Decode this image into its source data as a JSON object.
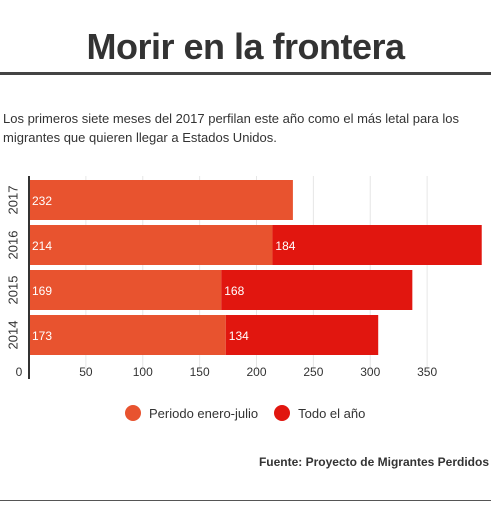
{
  "header": {
    "title": "Morir en la frontera",
    "subtitle": "Los primeros siete meses del 2017 perfilan este año como el más letal para los migrantes que quieren llegar a Estados Unidos."
  },
  "legend": {
    "items": [
      {
        "label": "Periodo enero-julio",
        "color": "#E8532F"
      },
      {
        "label": "Todo el año",
        "color": "#E1160F"
      }
    ]
  },
  "source": "Fuente: Proyecto de Migrantes Perdidos",
  "chart_data": {
    "type": "bar",
    "orientation": "horizontal",
    "stacked": true,
    "categories": [
      "2017",
      "2016",
      "2015",
      "2014"
    ],
    "series": [
      {
        "name": "Periodo enero-julio",
        "values": [
          232,
          214,
          169,
          173
        ],
        "color": "#E8532F"
      },
      {
        "name": "Todo el año",
        "values": [
          null,
          184,
          168,
          134
        ],
        "color": "#E1160F"
      }
    ],
    "xlim": [
      0,
      400
    ],
    "xticks": [
      0,
      50,
      100,
      150,
      200,
      250,
      300,
      350
    ],
    "grid": true,
    "legend_position": "bottom"
  }
}
